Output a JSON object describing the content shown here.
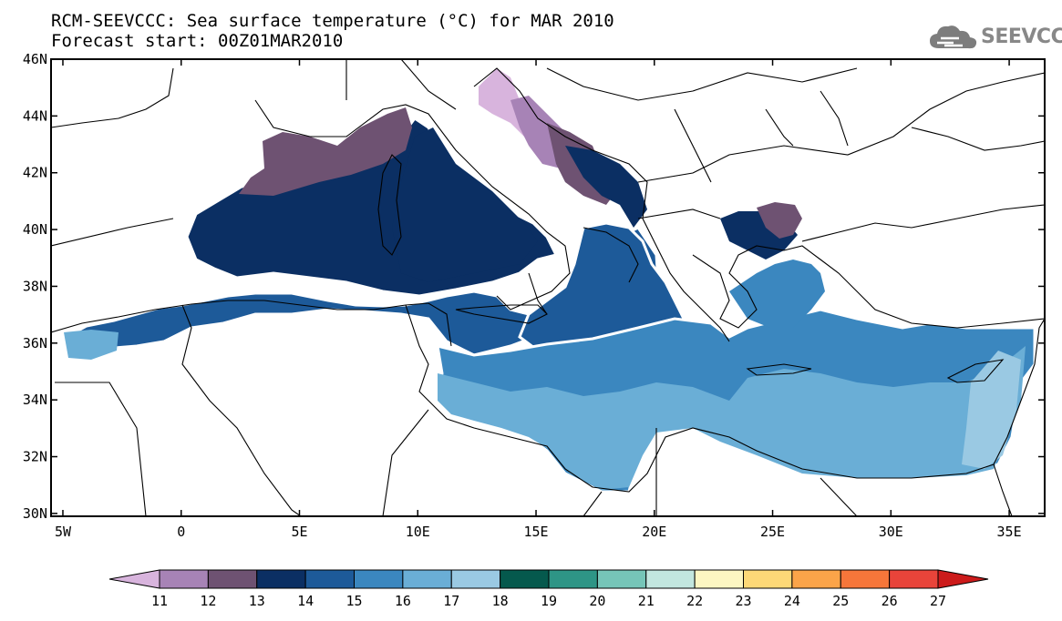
{
  "header": {
    "title_line1": "RCM-SEEVCCC: Sea surface temperature (°C) for MAR 2010",
    "title_line2": "Forecast start: 00Z01MAR2010",
    "logo_text": "SEEVCCC",
    "logo_icon": "cloud-icon"
  },
  "map": {
    "lon_ticks": [
      "5W",
      "0",
      "5E",
      "10E",
      "15E",
      "20E",
      "25E",
      "30E",
      "35E"
    ],
    "lat_ticks": [
      "46N",
      "44N",
      "42N",
      "40N",
      "38N",
      "36N",
      "34N",
      "32N",
      "30N"
    ],
    "lon_range": [
      -5.5,
      36.5
    ],
    "lat_range": [
      29.9,
      46
    ]
  },
  "colorbar": {
    "labels": [
      "11",
      "12",
      "13",
      "14",
      "15",
      "16",
      "17",
      "18",
      "19",
      "20",
      "21",
      "22",
      "23",
      "24",
      "25",
      "26",
      "27"
    ],
    "colors": [
      "#d8b4dd",
      "#a783b6",
      "#6e5272",
      "#0b2f63",
      "#1d5a99",
      "#3b87bf",
      "#6aaed6",
      "#9ac9e3",
      "#05594d",
      "#2e9586",
      "#76c5b8",
      "#c2e6df",
      "#fcf6c2",
      "#fdd877",
      "#fba449",
      "#f6763a",
      "#e8443a",
      "#cc1b1b"
    ]
  }
}
